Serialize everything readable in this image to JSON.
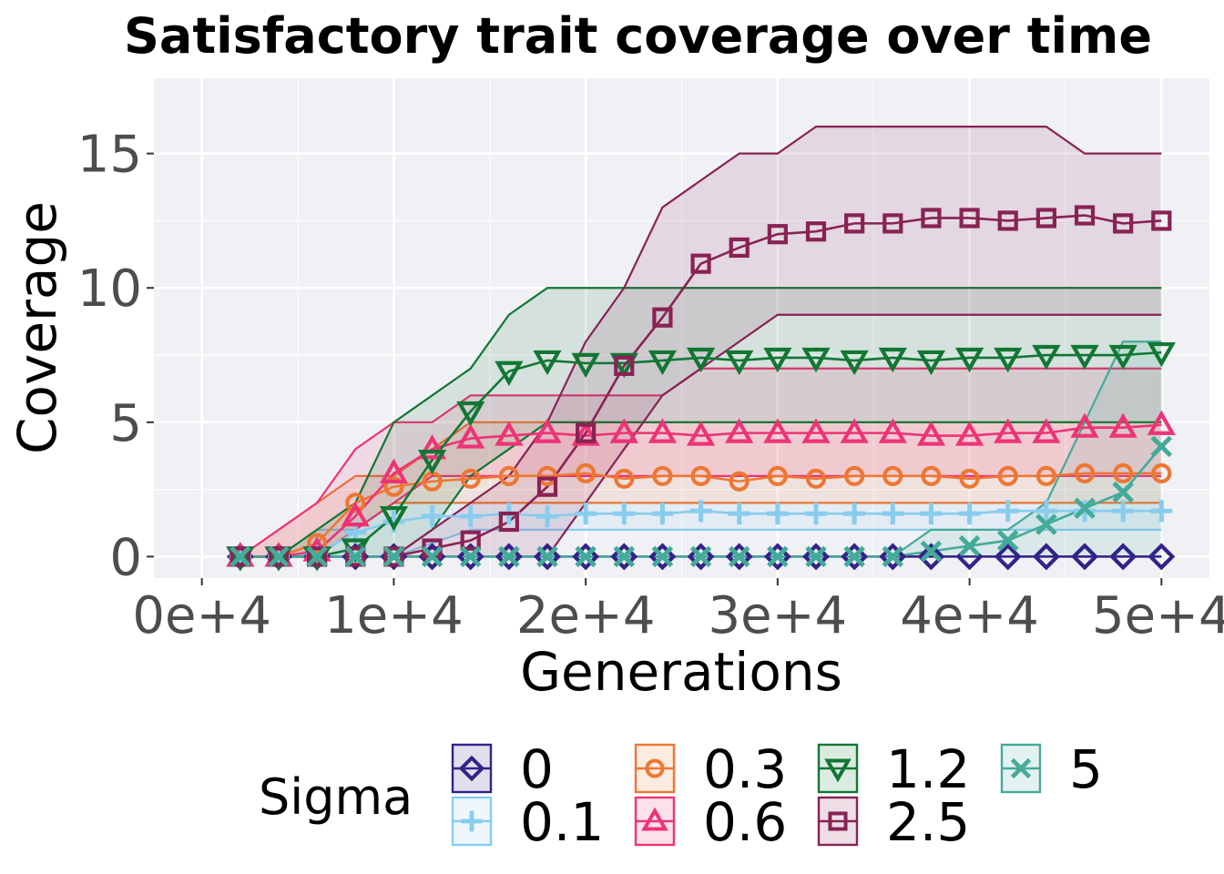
{
  "chart_data": {
    "type": "line",
    "title": "Satisfactory trait coverage over time",
    "xlabel": "Generations",
    "ylabel": "Coverage",
    "xlim": [
      -2500,
      52500
    ],
    "ylim": [
      -0.8,
      17.8
    ],
    "x_ticks": [
      0,
      10000,
      20000,
      30000,
      40000,
      50000
    ],
    "x_tick_labels": [
      "0e+4",
      "1e+4",
      "2e+4",
      "3e+4",
      "4e+4",
      "5e+4"
    ],
    "y_ticks": [
      0,
      5,
      10,
      15
    ],
    "y_tick_labels": [
      "0",
      "5",
      "10",
      "15"
    ],
    "grid": true,
    "legend": {
      "title": "Sigma",
      "position": "bottom"
    },
    "x": [
      2000,
      4000,
      6000,
      8000,
      10000,
      12000,
      14000,
      16000,
      18000,
      20000,
      22000,
      24000,
      26000,
      28000,
      30000,
      32000,
      34000,
      36000,
      38000,
      40000,
      42000,
      44000,
      46000,
      48000,
      50000
    ],
    "series": [
      {
        "name": "0",
        "color": "#332288",
        "marker": "diamond",
        "values": [
          0,
          0,
          0,
          0,
          0,
          0,
          0,
          0,
          0,
          0,
          0,
          0,
          0,
          0,
          0,
          0,
          0,
          0,
          0,
          0,
          0,
          0,
          0,
          0,
          0
        ],
        "lower": [
          0,
          0,
          0,
          0,
          0,
          0,
          0,
          0,
          0,
          0,
          0,
          0,
          0,
          0,
          0,
          0,
          0,
          0,
          0,
          0,
          0,
          0,
          0,
          0,
          0
        ],
        "upper": [
          0,
          0,
          0,
          0,
          0,
          0,
          0,
          0,
          0,
          0,
          0,
          0,
          0,
          0,
          0,
          0,
          0,
          0,
          0,
          0,
          0,
          0,
          0,
          0,
          0
        ]
      },
      {
        "name": "0.1",
        "color": "#88CCEE",
        "marker": "plus",
        "values": [
          0,
          0,
          0.1,
          0.9,
          1.3,
          1.5,
          1.5,
          1.6,
          1.5,
          1.6,
          1.6,
          1.6,
          1.7,
          1.6,
          1.6,
          1.6,
          1.6,
          1.6,
          1.6,
          1.6,
          1.7,
          1.7,
          1.7,
          1.7,
          1.7
        ],
        "lower": [
          0,
          0,
          0,
          0,
          0,
          0.5,
          1,
          1,
          1,
          1,
          1,
          1,
          1,
          1,
          1,
          1,
          1,
          1,
          1,
          1,
          1,
          1,
          1,
          1,
          1
        ],
        "upper": [
          0,
          0,
          1,
          1,
          2,
          2,
          2,
          2,
          2,
          2,
          2,
          2,
          2,
          2,
          2,
          2,
          2,
          2,
          2,
          2,
          2,
          2,
          2,
          2,
          2
        ]
      },
      {
        "name": "0.3",
        "color": "#EE7733",
        "marker": "circle",
        "values": [
          0,
          0,
          0.5,
          2.0,
          2.6,
          2.8,
          2.9,
          3.0,
          3.0,
          3.1,
          2.9,
          3.0,
          3.0,
          2.8,
          3.0,
          2.9,
          3.0,
          3.0,
          3.0,
          2.9,
          3.0,
          3.0,
          3.1,
          3.1,
          3.1
        ],
        "lower": [
          0,
          0,
          0,
          1,
          2,
          2,
          2,
          2,
          2,
          2,
          2,
          2,
          2,
          2,
          2,
          2,
          2,
          2,
          2,
          2,
          2,
          2,
          2,
          2,
          2
        ],
        "upper": [
          0,
          1,
          2,
          3,
          3,
          4,
          5,
          5,
          5,
          5,
          5,
          5,
          5,
          5,
          5,
          5,
          5,
          5,
          5,
          5,
          5,
          5,
          5,
          5,
          5
        ]
      },
      {
        "name": "0.6",
        "color": "#EE3377",
        "marker": "triangle",
        "values": [
          0,
          0,
          0.2,
          1.5,
          3.1,
          4.0,
          4.4,
          4.5,
          4.6,
          4.5,
          4.6,
          4.6,
          4.5,
          4.6,
          4.6,
          4.6,
          4.6,
          4.6,
          4.5,
          4.5,
          4.6,
          4.6,
          4.8,
          4.8,
          4.9
        ],
        "lower": [
          0,
          0,
          0,
          1,
          2,
          3,
          3,
          3,
          3,
          3,
          3,
          3,
          3,
          3,
          3,
          3,
          3,
          3,
          3,
          3,
          3,
          3,
          3,
          3,
          3
        ],
        "upper": [
          0,
          1,
          2,
          4,
          5,
          5,
          6,
          6,
          6,
          6,
          6,
          6,
          7,
          7,
          7,
          7,
          7,
          7,
          7,
          7,
          7,
          7,
          7,
          7,
          7
        ]
      },
      {
        "name": "1.2",
        "color": "#117733",
        "marker": "triangle-down",
        "values": [
          0,
          0,
          0,
          0.3,
          1.5,
          3.6,
          5.4,
          6.9,
          7.3,
          7.2,
          7.2,
          7.3,
          7.4,
          7.3,
          7.4,
          7.4,
          7.3,
          7.4,
          7.3,
          7.4,
          7.4,
          7.5,
          7.5,
          7.5,
          7.6
        ],
        "lower": [
          0,
          0,
          0,
          0,
          0,
          1,
          3,
          4,
          5,
          5,
          5,
          5,
          5,
          5,
          5,
          5,
          5,
          5,
          5,
          5,
          5,
          5,
          5,
          5,
          5
        ],
        "upper": [
          0,
          0,
          1,
          2,
          5,
          6,
          7,
          9,
          10,
          10,
          10,
          10,
          10,
          10,
          10,
          10,
          10,
          10,
          10,
          10,
          10,
          10,
          10,
          10,
          10
        ]
      },
      {
        "name": "2.5",
        "color": "#882255",
        "marker": "square",
        "values": [
          0,
          0,
          0,
          0,
          0,
          0.3,
          0.6,
          1.3,
          2.6,
          4.6,
          7.1,
          8.9,
          10.9,
          11.5,
          12.0,
          12.1,
          12.4,
          12.4,
          12.6,
          12.6,
          12.5,
          12.6,
          12.7,
          12.4,
          12.5
        ],
        "lower": [
          0,
          0,
          0,
          0,
          0,
          0,
          0,
          0,
          0,
          2,
          4,
          6,
          7,
          8,
          9,
          9,
          9,
          9,
          9,
          9,
          9,
          9,
          9,
          9,
          9
        ],
        "upper": [
          0,
          0,
          0,
          0,
          0,
          1,
          2,
          3,
          5,
          8,
          10,
          13,
          14,
          15,
          15,
          16,
          16,
          16,
          16,
          16,
          16,
          16,
          15,
          15,
          15
        ]
      },
      {
        "name": "5",
        "color": "#44AA99",
        "marker": "cross",
        "values": [
          0,
          0,
          0,
          0,
          0,
          0,
          0,
          0,
          0,
          0,
          0,
          0,
          0,
          0,
          0,
          0,
          0,
          0,
          0.2,
          0.4,
          0.6,
          1.2,
          1.8,
          2.4,
          4.1
        ],
        "lower": [
          0,
          0,
          0,
          0,
          0,
          0,
          0,
          0,
          0,
          0,
          0,
          0,
          0,
          0,
          0,
          0,
          0,
          0,
          0,
          0,
          0,
          0,
          0,
          0,
          0
        ],
        "upper": [
          0,
          0,
          0,
          0,
          0,
          0,
          0,
          0,
          0,
          0,
          0,
          0,
          0,
          0,
          0,
          0,
          0,
          0,
          1,
          1,
          1,
          2,
          5,
          8,
          8
        ]
      }
    ]
  }
}
